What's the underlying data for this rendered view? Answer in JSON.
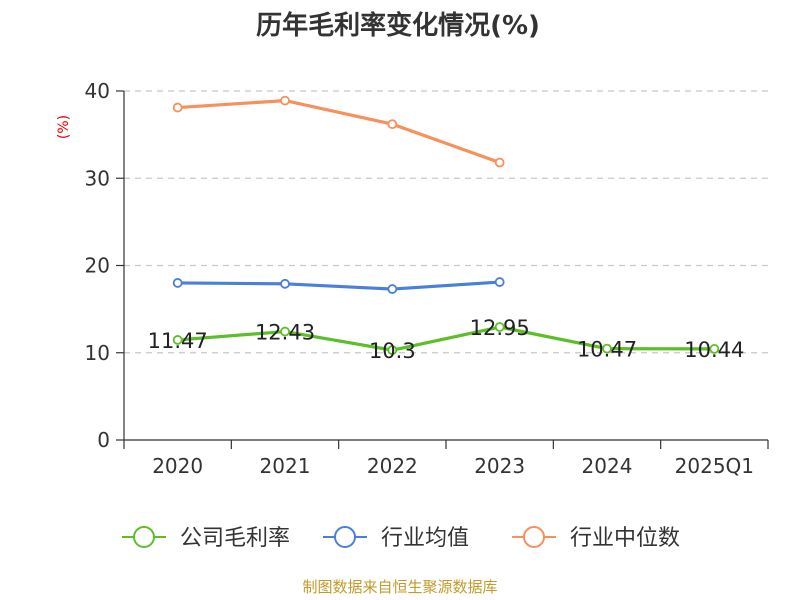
{
  "chart_data": {
    "type": "line",
    "title": "历年毛利率变化情况(%)",
    "ylabel": "(%)",
    "ylim": [
      0,
      40
    ],
    "yticks": [
      0,
      10,
      20,
      30,
      40
    ],
    "grid": true,
    "legend_position": "bottom",
    "categories": [
      "2020",
      "2021",
      "2022",
      "2023",
      "2024",
      "2025Q1"
    ],
    "series": [
      {
        "name": "公司毛利率",
        "color": "#5cbf2a",
        "values": [
          11.47,
          12.43,
          10.3,
          12.95,
          10.47,
          10.44
        ],
        "labels": [
          "11.47",
          "12.43",
          "10.3",
          "12.95",
          "10.47",
          "10.44"
        ]
      },
      {
        "name": "行业均值",
        "color": "#4a7fdc",
        "values": [
          18.0,
          17.9,
          17.3,
          18.1,
          null,
          null
        ]
      },
      {
        "name": "行业中位数",
        "color": "#f7905a",
        "values": [
          38.1,
          38.9,
          36.2,
          31.8,
          null,
          null
        ]
      }
    ]
  },
  "source": "制图数据来自恒生聚源数据库"
}
